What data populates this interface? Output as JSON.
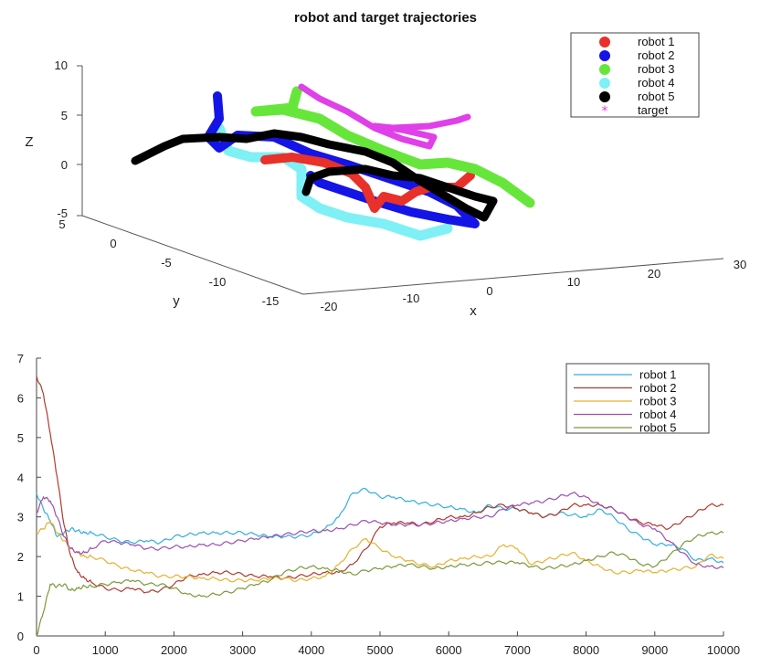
{
  "chart_data": [
    {
      "type": "scatter3d",
      "title": "robot and target trajectories",
      "xlabel": "x",
      "ylabel": "y",
      "zlabel": "Z",
      "xlim": [
        -20,
        30
      ],
      "ylim": [
        -15,
        5
      ],
      "zlim": [
        -5,
        10
      ],
      "x_ticks": [
        "-20",
        "-10",
        "0",
        "10",
        "20",
        "30"
      ],
      "y_ticks": [
        "5",
        "0",
        "-5",
        "-10",
        "-15"
      ],
      "z_ticks": [
        "-5",
        "0",
        "5",
        "10"
      ],
      "legend": {
        "placement": "top-right",
        "entries": [
          {
            "label": "robot 1",
            "color": "#e8312a",
            "marker": "dot"
          },
          {
            "label": "robot 2",
            "color": "#1414e6",
            "marker": "dot"
          },
          {
            "label": "robot 3",
            "color": "#66e63a",
            "marker": "dot"
          },
          {
            "label": "robot 4",
            "color": "#7ff0f5",
            "marker": "dot"
          },
          {
            "label": "robot 5",
            "color": "#000000",
            "marker": "dot"
          },
          {
            "label": "target",
            "color": "#e040e8",
            "marker": "asterisk"
          }
        ]
      }
    },
    {
      "type": "line",
      "xlim": [
        0,
        10000
      ],
      "ylim": [
        0,
        7
      ],
      "x_ticks": [
        0,
        1000,
        2000,
        3000,
        4000,
        5000,
        6000,
        7000,
        8000,
        9000,
        10000
      ],
      "y_ticks": [
        0,
        1,
        2,
        3,
        4,
        5,
        6,
        7
      ],
      "legend_placement": "top-right",
      "x": [
        0,
        100,
        200,
        300,
        400,
        500,
        600,
        700,
        800,
        1000,
        1200,
        1400,
        1600,
        1800,
        2000,
        2200,
        2400,
        2600,
        2800,
        3000,
        3200,
        3400,
        3600,
        3800,
        4000,
        4200,
        4400,
        4600,
        4800,
        5000,
        5200,
        5400,
        5600,
        5800,
        6000,
        6200,
        6400,
        6600,
        6800,
        7000,
        7200,
        7400,
        7600,
        7800,
        8000,
        8200,
        8400,
        8600,
        8800,
        9000,
        9200,
        9400,
        9600,
        9800,
        10000
      ],
      "series": [
        {
          "name": "robot 1",
          "color": "#33aee0",
          "values": [
            3.6,
            3.2,
            2.9,
            2.5,
            2.6,
            2.7,
            2.65,
            2.6,
            2.6,
            2.5,
            2.4,
            2.35,
            2.4,
            2.35,
            2.5,
            2.55,
            2.6,
            2.6,
            2.6,
            2.6,
            2.55,
            2.5,
            2.5,
            2.5,
            2.55,
            2.7,
            3.0,
            3.6,
            3.7,
            3.5,
            3.5,
            3.4,
            3.35,
            3.3,
            3.25,
            3.2,
            3.1,
            3.3,
            3.2,
            3.2,
            3.1,
            3.0,
            3.1,
            3.05,
            3.0,
            3.2,
            3.0,
            2.7,
            2.5,
            2.3,
            2.3,
            2.2,
            1.9,
            1.95,
            1.85
          ]
        },
        {
          "name": "robot 2",
          "color": "#b03a2e",
          "values": [
            6.55,
            6.1,
            5.1,
            4.0,
            2.8,
            2.0,
            1.6,
            1.45,
            1.35,
            1.2,
            1.15,
            1.2,
            1.1,
            1.15,
            1.3,
            1.5,
            1.55,
            1.6,
            1.6,
            1.55,
            1.5,
            1.5,
            1.45,
            1.5,
            1.55,
            1.6,
            1.6,
            1.8,
            2.2,
            2.75,
            2.85,
            2.85,
            2.8,
            2.9,
            3.0,
            3.0,
            3.1,
            3.25,
            3.3,
            3.2,
            3.1,
            3.0,
            3.1,
            3.3,
            3.3,
            3.3,
            3.2,
            3.0,
            2.85,
            2.8,
            2.7,
            2.9,
            3.1,
            3.3,
            3.3
          ]
        },
        {
          "name": "robot 3",
          "color": "#e8b02e",
          "values": [
            2.6,
            2.7,
            2.9,
            2.6,
            2.4,
            2.2,
            2.1,
            2.0,
            2.0,
            1.9,
            1.75,
            1.65,
            1.6,
            1.5,
            1.5,
            1.5,
            1.45,
            1.45,
            1.4,
            1.4,
            1.4,
            1.45,
            1.45,
            1.4,
            1.45,
            1.5,
            1.8,
            2.2,
            2.45,
            2.2,
            2.0,
            1.9,
            1.8,
            1.75,
            1.9,
            1.95,
            2.0,
            2.0,
            2.3,
            2.2,
            1.8,
            1.9,
            2.0,
            2.1,
            1.9,
            1.75,
            1.6,
            1.6,
            1.65,
            1.6,
            1.65,
            1.7,
            1.75,
            2.05,
            1.95
          ]
        },
        {
          "name": "robot 4",
          "color": "#9b4fb0",
          "values": [
            3.1,
            3.5,
            3.4,
            3.0,
            2.5,
            2.2,
            2.1,
            2.1,
            2.2,
            2.4,
            2.35,
            2.3,
            2.2,
            2.2,
            2.25,
            2.25,
            2.3,
            2.3,
            2.35,
            2.4,
            2.45,
            2.5,
            2.55,
            2.6,
            2.65,
            2.65,
            2.7,
            2.8,
            2.9,
            2.85,
            2.8,
            2.8,
            2.8,
            2.85,
            2.9,
            2.95,
            3.0,
            3.0,
            3.2,
            3.3,
            3.35,
            3.4,
            3.5,
            3.6,
            3.5,
            3.3,
            3.2,
            3.0,
            2.8,
            2.7,
            2.4,
            2.1,
            1.8,
            1.75,
            1.72
          ]
        },
        {
          "name": "robot 5",
          "color": "#7a9a3a",
          "values": [
            0.0,
            0.6,
            1.3,
            1.25,
            1.3,
            1.15,
            1.2,
            1.25,
            1.25,
            1.3,
            1.35,
            1.4,
            1.3,
            1.3,
            1.2,
            1.05,
            1.0,
            1.05,
            1.1,
            1.2,
            1.3,
            1.4,
            1.6,
            1.7,
            1.75,
            1.7,
            1.65,
            1.55,
            1.65,
            1.7,
            1.75,
            1.8,
            1.75,
            1.7,
            1.75,
            1.8,
            1.8,
            1.85,
            1.85,
            1.85,
            1.75,
            1.7,
            1.75,
            1.8,
            1.9,
            2.0,
            2.1,
            2.0,
            1.8,
            1.75,
            2.0,
            2.3,
            2.5,
            2.6,
            2.6
          ]
        }
      ]
    }
  ]
}
